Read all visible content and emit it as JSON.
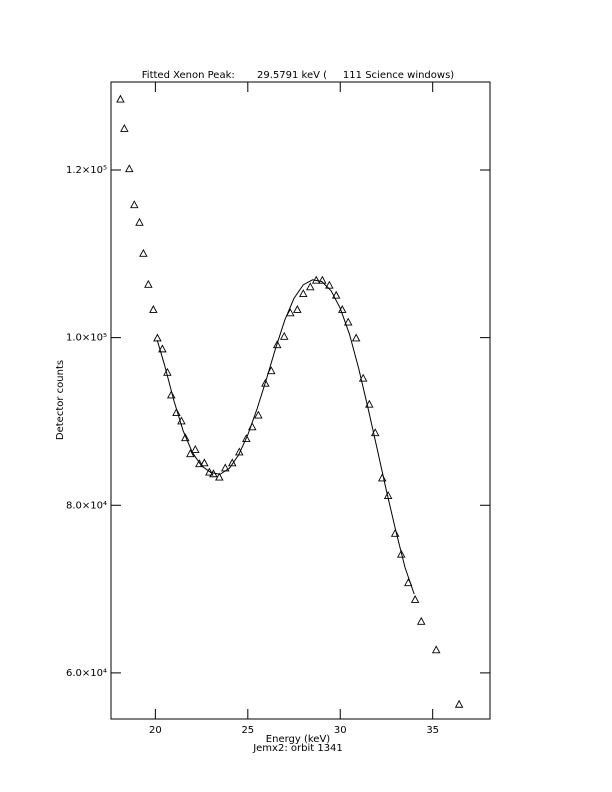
{
  "chart_data": {
    "type": "scatter",
    "title": "Fitted Xenon Peak:       29.5791 keV (     111 Science windows)",
    "xlabel": "Energy (keV)",
    "subtitle": "Jemx2: orbit 1341",
    "ylabel": "Detector counts",
    "xlim": [
      17.6,
      38.1
    ],
    "ylim": [
      54500,
      130500
    ],
    "xticks": [
      20,
      25,
      30,
      35
    ],
    "yticks": [
      {
        "value": 60000,
        "label": "6.0×10⁴"
      },
      {
        "value": 80000,
        "label": "8.0×10⁴"
      },
      {
        "value": 100000,
        "label": "1.0×10⁵"
      },
      {
        "value": 120000,
        "label": "1.2×10⁵"
      }
    ],
    "series": [
      {
        "kind": "scatter",
        "color": "#000000",
        "x": [
          18.11,
          18.32,
          18.59,
          18.86,
          19.14,
          19.35,
          19.62,
          19.89,
          20.11,
          20.38,
          20.65,
          20.86,
          21.14,
          21.41,
          21.62,
          21.89,
          22.16,
          22.38,
          22.65,
          22.92,
          23.14,
          23.46,
          23.78,
          24.16,
          24.54,
          24.92,
          25.24,
          25.57,
          25.95,
          26.27,
          26.59,
          26.97,
          27.3,
          27.68,
          28.0,
          28.38,
          28.7,
          29.03,
          29.41,
          29.78,
          30.11,
          30.43,
          30.86,
          31.24,
          31.57,
          31.89,
          32.27,
          32.59,
          32.97,
          33.3,
          33.68,
          34.05,
          34.38,
          35.19,
          36.43
        ],
        "values": [
          128400,
          124900,
          120100,
          115800,
          113700,
          110000,
          106300,
          103300,
          99900,
          98600,
          95800,
          93100,
          91000,
          90000,
          88000,
          86100,
          86600,
          84900,
          85000,
          83900,
          83700,
          83300,
          84400,
          85000,
          86300,
          87900,
          89300,
          90700,
          94500,
          96000,
          99100,
          100100,
          102900,
          103300,
          105200,
          106000,
          106800,
          106800,
          106200,
          105000,
          103300,
          101800,
          99900,
          95100,
          92000,
          88600,
          83200,
          81100,
          76600,
          74100,
          70700,
          68700,
          66100,
          62700,
          56200
        ]
      },
      {
        "kind": "line",
        "color": "#000000",
        "x": [
          20.1,
          20.5,
          21,
          21.5,
          22,
          22.5,
          23,
          23.5,
          24,
          24.5,
          25,
          25.5,
          26,
          26.5,
          27,
          27.5,
          28,
          28.5,
          29,
          29.5,
          30,
          30.5,
          31,
          31.5,
          32,
          32.5,
          33,
          33.5,
          34
        ],
        "values": [
          99700,
          96700,
          92500,
          88900,
          86300,
          84700,
          83900,
          83700,
          84400,
          86000,
          88400,
          91500,
          95000,
          98700,
          102100,
          104700,
          106300,
          106900,
          106700,
          105600,
          103500,
          100400,
          96300,
          91600,
          86700,
          81700,
          77000,
          72600,
          69400
        ]
      }
    ]
  }
}
